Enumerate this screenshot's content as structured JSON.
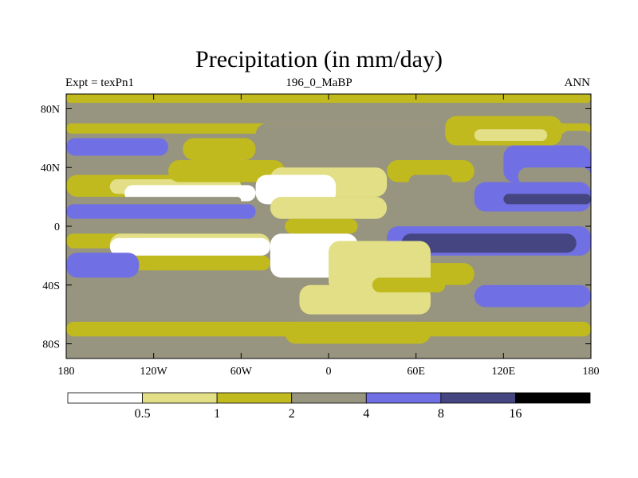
{
  "page": {
    "title": "Precipitation (in mm/day)",
    "subtitle_left": "Expt = texPn1",
    "subtitle_center": "196_0_MaBP",
    "subtitle_right": "ANN"
  },
  "chart_data": {
    "type": "heatmap",
    "title": "Precipitation (in mm/day)",
    "projection": "cylindrical-equidistant",
    "x_axis": {
      "range": [
        -180,
        180
      ],
      "ticks": [
        -180,
        -120,
        -60,
        0,
        60,
        120,
        180
      ],
      "tick_labels": [
        "180",
        "120W",
        "60W",
        "0",
        "60E",
        "120E",
        "180"
      ]
    },
    "y_axis": {
      "range": [
        -90,
        90
      ],
      "ticks": [
        80,
        40,
        0,
        -40,
        -80
      ],
      "tick_labels": [
        "80N",
        "40N",
        "0",
        "40S",
        "80S"
      ]
    },
    "colorbar": {
      "position": "bottom",
      "levels": [
        0.5,
        1,
        2,
        4,
        8,
        16
      ],
      "level_labels": [
        "0.5",
        "1",
        "2",
        "4",
        "8",
        "16"
      ],
      "colors": [
        "#ffffff",
        "#e2df86",
        "#c1ba1e",
        "#97947f",
        "#7070e4",
        "#454581",
        "#000000"
      ]
    },
    "bands": [
      {
        "lat": [
          84,
          90
        ],
        "lon": [
          -180,
          180
        ],
        "bin": 2
      },
      {
        "lat": [
          70,
          84
        ],
        "lon": [
          -180,
          180
        ],
        "bin": 3
      },
      {
        "lat": [
          63,
          70
        ],
        "lon": [
          -180,
          180
        ],
        "bin": 2
      },
      {
        "lat": [
          45,
          63
        ],
        "lon": [
          -180,
          -100
        ],
        "bin": 3
      },
      {
        "lat": [
          48,
          60
        ],
        "lon": [
          -180,
          -110
        ],
        "bin": 4
      },
      {
        "lat": [
          35,
          45
        ],
        "lon": [
          -180,
          -130
        ],
        "bin": 3
      },
      {
        "lat": [
          20,
          35
        ],
        "lon": [
          -180,
          -60
        ],
        "bin": 2
      },
      {
        "lat": [
          22,
          32
        ],
        "lon": [
          -150,
          -60
        ],
        "bin": 1
      },
      {
        "lat": [
          17,
          28
        ],
        "lon": [
          -140,
          -50
        ],
        "bin": 0
      },
      {
        "lat": [
          15,
          20
        ],
        "lon": [
          -180,
          -60
        ],
        "bin": 3
      },
      {
        "lat": [
          5,
          15
        ],
        "lon": [
          -180,
          -50
        ],
        "bin": 4
      },
      {
        "lat": [
          -5,
          5
        ],
        "lon": [
          -180,
          -40
        ],
        "bin": 3
      },
      {
        "lat": [
          -15,
          -5
        ],
        "lon": [
          -180,
          -120
        ],
        "bin": 2
      },
      {
        "lat": [
          -20,
          -5
        ],
        "lon": [
          -150,
          -40
        ],
        "bin": 1
      },
      {
        "lat": [
          -20,
          -8
        ],
        "lon": [
          -150,
          -40
        ],
        "bin": 0
      },
      {
        "lat": [
          -30,
          -20
        ],
        "lon": [
          -180,
          -40
        ],
        "bin": 2
      },
      {
        "lat": [
          -40,
          -30
        ],
        "lon": [
          -180,
          -120
        ],
        "bin": 3
      },
      {
        "lat": [
          -35,
          -18
        ],
        "lon": [
          -180,
          -130
        ],
        "bin": 4
      },
      {
        "lat": [
          -65,
          -40
        ],
        "lon": [
          -180,
          180
        ],
        "bin": 3
      },
      {
        "lat": [
          -55,
          -40
        ],
        "lon": [
          100,
          180
        ],
        "bin": 4
      },
      {
        "lat": [
          -75,
          -65
        ],
        "lon": [
          -180,
          180
        ],
        "bin": 2
      },
      {
        "lat": [
          -90,
          -75
        ],
        "lon": [
          -180,
          180
        ],
        "bin": 3
      },
      {
        "lat": [
          -80,
          -65
        ],
        "lon": [
          -30,
          70
        ],
        "bin": 2
      },
      {
        "lat": [
          40,
          70
        ],
        "lon": [
          -50,
          100
        ],
        "bin": 3
      },
      {
        "lat": [
          55,
          75
        ],
        "lon": [
          80,
          160
        ],
        "bin": 2
      },
      {
        "lat": [
          58,
          66
        ],
        "lon": [
          100,
          150
        ],
        "bin": 1
      },
      {
        "lat": [
          55,
          65
        ],
        "lon": [
          160,
          180
        ],
        "bin": 3
      },
      {
        "lat": [
          30,
          55
        ],
        "lon": [
          120,
          180
        ],
        "bin": 4
      },
      {
        "lat": [
          28,
          40
        ],
        "lon": [
          130,
          180
        ],
        "bin": 3
      },
      {
        "lat": [
          10,
          30
        ],
        "lon": [
          100,
          180
        ],
        "bin": 4
      },
      {
        "lat": [
          15,
          22
        ],
        "lon": [
          120,
          180
        ],
        "bin": 5
      },
      {
        "lat": [
          0,
          10
        ],
        "lon": [
          40,
          180
        ],
        "bin": 3
      },
      {
        "lat": [
          -20,
          0
        ],
        "lon": [
          40,
          180
        ],
        "bin": 4
      },
      {
        "lat": [
          -18,
          -5
        ],
        "lon": [
          50,
          170
        ],
        "bin": 5
      },
      {
        "lat": [
          -40,
          -20
        ],
        "lon": [
          100,
          180
        ],
        "bin": 3
      },
      {
        "lat": [
          -40,
          -25
        ],
        "lon": [
          20,
          100
        ],
        "bin": 2
      },
      {
        "lat": [
          45,
          60
        ],
        "lon": [
          -100,
          -50
        ],
        "bin": 2
      },
      {
        "lat": [
          30,
          45
        ],
        "lon": [
          -110,
          -30
        ],
        "bin": 2
      },
      {
        "lat": [
          20,
          40
        ],
        "lon": [
          -40,
          40
        ],
        "bin": 1
      },
      {
        "lat": [
          15,
          35
        ],
        "lon": [
          -50,
          5
        ],
        "bin": 0
      },
      {
        "lat": [
          5,
          20
        ],
        "lon": [
          -40,
          40
        ],
        "bin": 1
      },
      {
        "lat": [
          -5,
          5
        ],
        "lon": [
          -30,
          20
        ],
        "bin": 2
      },
      {
        "lat": [
          -35,
          -5
        ],
        "lon": [
          -40,
          20
        ],
        "bin": 0
      },
      {
        "lat": [
          -45,
          -10
        ],
        "lon": [
          0,
          70
        ],
        "bin": 1
      },
      {
        "lat": [
          -60,
          -40
        ],
        "lon": [
          -20,
          70
        ],
        "bin": 1
      },
      {
        "lat": [
          -45,
          -35
        ],
        "lon": [
          30,
          80
        ],
        "bin": 2
      },
      {
        "lat": [
          30,
          45
        ],
        "lon": [
          40,
          100
        ],
        "bin": 2
      },
      {
        "lat": [
          25,
          35
        ],
        "lon": [
          55,
          85
        ],
        "bin": 3
      }
    ]
  }
}
